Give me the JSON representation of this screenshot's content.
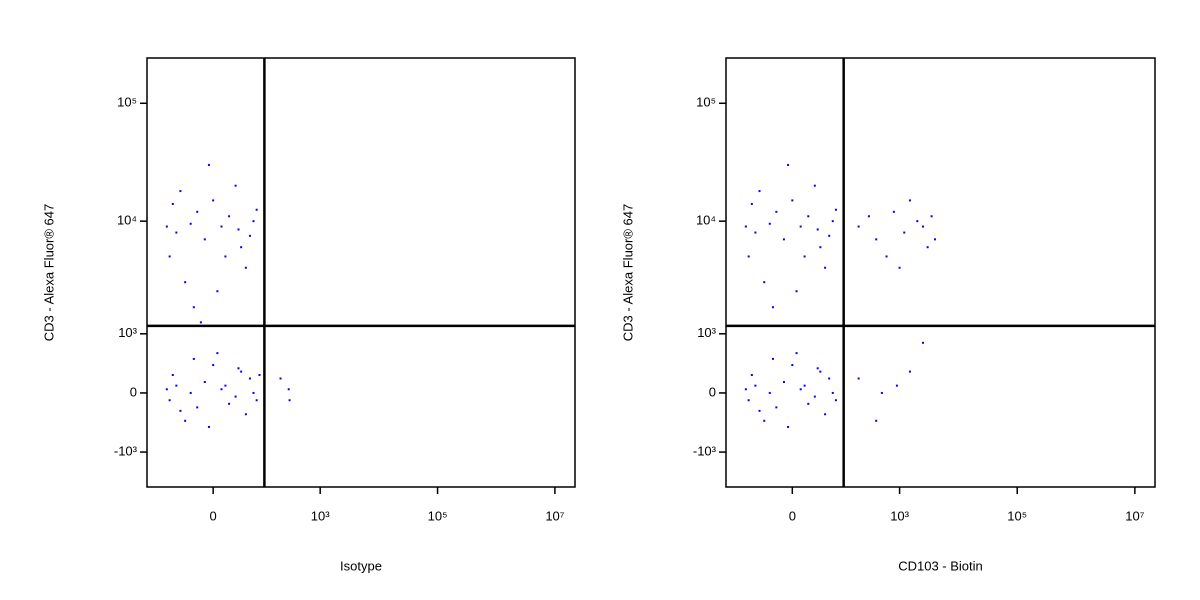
{
  "chart_data": [
    {
      "type": "scatter",
      "scale": "biexponential",
      "xlabel": "Isotype",
      "ylabel": "CD3 - Alexa Fluor® 647",
      "color": "#0000ff",
      "xlim": [
        -200,
        22000000
      ],
      "ylim": [
        -2140,
        242000
      ],
      "xticks": [
        0,
        {
          "value": 1000,
          "label": "10³"
        },
        {
          "value": 100000,
          "label": "10⁵"
        },
        {
          "value": 10000000,
          "label": "10⁷"
        }
      ],
      "yticks": [
        {
          "value": -1000,
          "label": "-10³"
        },
        0,
        {
          "value": 1000,
          "label": "10³"
        },
        {
          "value": 10000,
          "label": "10⁴"
        },
        {
          "value": 100000,
          "label": "10⁵"
        }
      ],
      "gates": {
        "x": 110,
        "y": 1200
      },
      "x": [
        -60,
        -20,
        10,
        40,
        -80,
        70,
        0,
        -40,
        30,
        -10,
        50,
        -70,
        20,
        -30,
        60,
        -50,
        5,
        80,
        -90,
        15,
        -5,
        35,
        -25,
        -15,
        -60,
        -20,
        10,
        40,
        -80,
        70,
        0,
        -40,
        30,
        -10,
        50,
        -70,
        20,
        -30,
        60,
        -50,
        5,
        80,
        -90,
        15,
        -5,
        35,
        -25,
        90,
        210,
        300,
        290
      ],
      "y": [
        8000,
        12000,
        9000,
        6000,
        5000,
        10000,
        15000,
        3000,
        20000,
        7000,
        4000,
        14000,
        11000,
        9500,
        7500,
        18000,
        2500,
        12500,
        9000,
        5000,
        30000,
        8500,
        1800,
        1300,
        100,
        -200,
        50,
        300,
        -100,
        0,
        400,
        -400,
        -50,
        150,
        -300,
        250,
        -150,
        0,
        200,
        -250,
        600,
        -100,
        50,
        100,
        -500,
        350,
        500,
        250,
        200,
        -100,
        50
      ]
    },
    {
      "type": "scatter",
      "scale": "biexponential",
      "xlabel": "CD103 - Biotin",
      "ylabel": "CD3 - Alexa Fluor® 647",
      "color": "#0000ff",
      "xlim": [
        -200,
        22000000
      ],
      "ylim": [
        -2140,
        242000
      ],
      "xticks": [
        0,
        {
          "value": 1000,
          "label": "10³"
        },
        {
          "value": 100000,
          "label": "10⁵"
        },
        {
          "value": 10000000,
          "label": "10⁷"
        }
      ],
      "yticks": [
        {
          "value": -1000,
          "label": "-10³"
        },
        0,
        {
          "value": 1000,
          "label": "10³"
        },
        {
          "value": 10000,
          "label": "10⁴"
        },
        {
          "value": 100000,
          "label": "10⁵"
        }
      ],
      "gates": {
        "x": 110,
        "y": 1200
      },
      "x": [
        -60,
        -20,
        10,
        40,
        -80,
        70,
        0,
        -40,
        30,
        -10,
        50,
        -70,
        20,
        -30,
        60,
        -50,
        5,
        80,
        -90,
        15,
        -5,
        35,
        -25,
        200,
        400,
        800,
        1200,
        2000,
        3000,
        1500,
        600,
        2500,
        3500,
        300,
        1000,
        4000,
        -60,
        -20,
        10,
        40,
        -80,
        70,
        0,
        -40,
        30,
        -10,
        50,
        -70,
        20,
        -30,
        60,
        -50,
        5,
        80,
        -90,
        15,
        -5,
        35,
        -25,
        200,
        500,
        1500,
        2500,
        400,
        900
      ],
      "y": [
        8000,
        12000,
        9000,
        6000,
        5000,
        10000,
        15000,
        3000,
        20000,
        7000,
        4000,
        14000,
        11000,
        9500,
        7500,
        18000,
        2500,
        12500,
        9000,
        5000,
        30000,
        8500,
        1800,
        9000,
        7000,
        12000,
        8000,
        10000,
        6000,
        15000,
        5000,
        9000,
        11000,
        11000,
        4000,
        7000,
        100,
        -200,
        50,
        300,
        -100,
        0,
        400,
        -400,
        -50,
        150,
        -300,
        250,
        -150,
        0,
        200,
        -250,
        600,
        -100,
        50,
        100,
        -500,
        350,
        500,
        200,
        0,
        300,
        800,
        -400,
        100
      ]
    }
  ]
}
